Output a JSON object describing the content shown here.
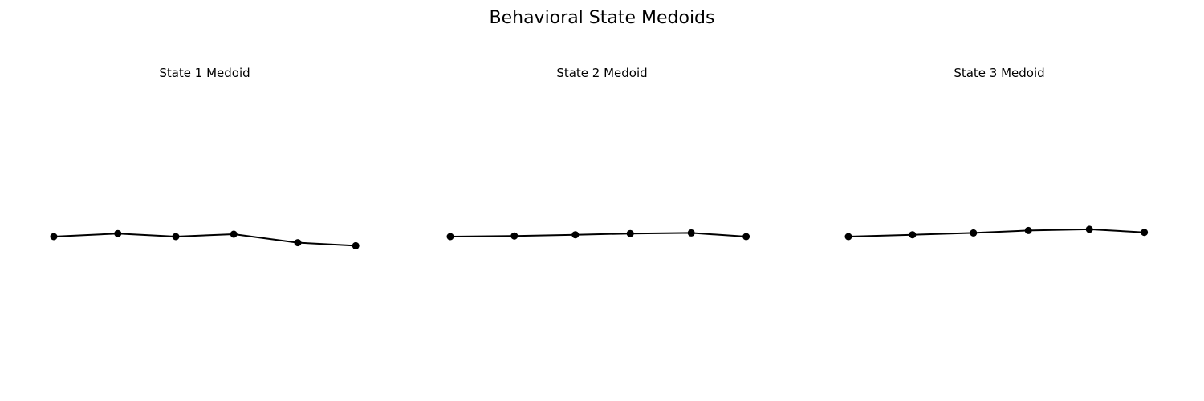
{
  "figure": {
    "title": "Behavioral State Medoids"
  },
  "chart_data": [
    {
      "type": "line",
      "title": "State 1 Medoid",
      "axes_visible": false,
      "aspect": "equal",
      "marker": "circle",
      "line_color": "#000000",
      "marker_color": "#000000",
      "x": [
        0.0,
        1.05,
        2.0,
        2.95,
        4.0,
        4.95
      ],
      "y": [
        0.0,
        0.05,
        0.0,
        0.04,
        -0.1,
        -0.15
      ]
    },
    {
      "type": "line",
      "title": "State 2 Medoid",
      "axes_visible": false,
      "aspect": "equal",
      "marker": "circle",
      "line_color": "#000000",
      "marker_color": "#000000",
      "x": [
        0.0,
        1.05,
        2.05,
        2.95,
        3.95,
        4.85
      ],
      "y": [
        0.0,
        0.01,
        0.03,
        0.05,
        0.06,
        0.0
      ]
    },
    {
      "type": "line",
      "title": "State 3 Medoid",
      "axes_visible": false,
      "aspect": "equal",
      "marker": "circle",
      "line_color": "#000000",
      "marker_color": "#000000",
      "x": [
        0.0,
        1.05,
        2.05,
        2.95,
        3.95,
        4.85
      ],
      "y": [
        0.0,
        0.03,
        0.06,
        0.1,
        0.12,
        0.07
      ]
    }
  ]
}
